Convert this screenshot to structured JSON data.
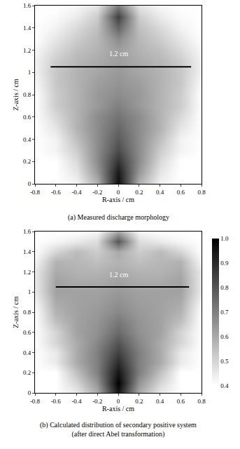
{
  "chart_data": [
    {
      "type": "heatmap",
      "caption": [
        "(a) Measured discharge morphology"
      ],
      "xlabel": "R-axis / cm",
      "ylabel": "Z-axis / cm",
      "x": [
        -0.8,
        -0.6,
        -0.4,
        -0.2,
        0,
        0.2,
        0.4,
        0.6,
        0.8
      ],
      "y": [
        0,
        0.1,
        0.2,
        0.3,
        0.4,
        0.5,
        0.6,
        0.7,
        0.8,
        0.9,
        1.0,
        1.1,
        1.2,
        1.3,
        1.4,
        1.5,
        1.6
      ],
      "cells": [
        [
          0,
          0,
          0.05,
          0.3,
          0.95,
          0.3,
          0.05,
          0,
          0
        ],
        [
          0,
          0,
          0.1,
          0.4,
          0.9,
          0.4,
          0.1,
          0,
          0
        ],
        [
          0,
          0,
          0.15,
          0.45,
          0.8,
          0.45,
          0.15,
          0,
          0
        ],
        [
          0,
          0.05,
          0.2,
          0.45,
          0.7,
          0.45,
          0.2,
          0.05,
          0
        ],
        [
          0,
          0.05,
          0.25,
          0.45,
          0.65,
          0.45,
          0.25,
          0.05,
          0
        ],
        [
          0,
          0.1,
          0.3,
          0.45,
          0.6,
          0.45,
          0.3,
          0.1,
          0
        ],
        [
          0,
          0.15,
          0.3,
          0.45,
          0.55,
          0.45,
          0.3,
          0.15,
          0
        ],
        [
          0,
          0.2,
          0.3,
          0.4,
          0.5,
          0.4,
          0.3,
          0.2,
          0
        ],
        [
          0,
          0.2,
          0.3,
          0.4,
          0.45,
          0.4,
          0.3,
          0.2,
          0
        ],
        [
          0.02,
          0.22,
          0.3,
          0.38,
          0.42,
          0.38,
          0.3,
          0.22,
          0.02
        ],
        [
          0.05,
          0.22,
          0.3,
          0.35,
          0.4,
          0.35,
          0.3,
          0.22,
          0.05
        ],
        [
          0.05,
          0.2,
          0.28,
          0.33,
          0.38,
          0.33,
          0.28,
          0.2,
          0.05
        ],
        [
          0.03,
          0.15,
          0.25,
          0.3,
          0.38,
          0.3,
          0.25,
          0.15,
          0.03
        ],
        [
          0,
          0.1,
          0.2,
          0.28,
          0.45,
          0.28,
          0.2,
          0.1,
          0
        ],
        [
          0,
          0.05,
          0.15,
          0.25,
          0.6,
          0.25,
          0.15,
          0.05,
          0
        ],
        [
          0,
          0.02,
          0.08,
          0.2,
          0.75,
          0.2,
          0.08,
          0.02,
          0
        ],
        [
          0,
          0,
          0.03,
          0.1,
          0.5,
          0.1,
          0.03,
          0,
          0
        ]
      ],
      "zlim": [
        0,
        1
      ],
      "xlim": [
        -0.8,
        0.8
      ],
      "ylim": [
        0,
        1.6
      ],
      "xticks": [
        -0.8,
        -0.6,
        -0.4,
        -0.2,
        0,
        0.2,
        0.4,
        0.6,
        0.8
      ],
      "yticks": [
        0,
        0.2,
        0.4,
        0.6,
        0.8,
        1.0,
        1.2,
        1.4,
        1.6
      ],
      "annotations": [
        {
          "text": "1.2 cm",
          "x": 0,
          "y": 1.17
        }
      ],
      "lines": [
        {
          "x": [
            -0.65,
            0.7
          ],
          "y": [
            1.05,
            1.05
          ]
        }
      ]
    },
    {
      "type": "heatmap",
      "caption": [
        "(b) Calculated distribution of secondary positive system",
        "(after direct Abel transformation)"
      ],
      "xlabel": "R-axis / cm",
      "ylabel": "Z-axis / cm",
      "x": [
        -0.8,
        -0.6,
        -0.4,
        -0.2,
        0,
        0.2,
        0.4,
        0.6,
        0.8
      ],
      "y": [
        0,
        0.1,
        0.2,
        0.3,
        0.4,
        0.5,
        0.6,
        0.7,
        0.8,
        0.9,
        1.0,
        1.1,
        1.2,
        1.3,
        1.4,
        1.5,
        1.6
      ],
      "cells": [
        [
          0.4,
          0.4,
          0.45,
          0.6,
          0.95,
          0.6,
          0.45,
          0.4,
          0.4
        ],
        [
          0.4,
          0.4,
          0.5,
          0.65,
          1.0,
          0.65,
          0.5,
          0.4,
          0.4
        ],
        [
          0.4,
          0.4,
          0.55,
          0.7,
          0.95,
          0.7,
          0.55,
          0.4,
          0.4
        ],
        [
          0.4,
          0.45,
          0.6,
          0.7,
          0.9,
          0.7,
          0.6,
          0.45,
          0.4
        ],
        [
          0.4,
          0.45,
          0.6,
          0.7,
          0.85,
          0.7,
          0.6,
          0.45,
          0.4
        ],
        [
          0.4,
          0.5,
          0.6,
          0.68,
          0.8,
          0.68,
          0.6,
          0.5,
          0.4
        ],
        [
          0.4,
          0.5,
          0.62,
          0.66,
          0.75,
          0.66,
          0.62,
          0.5,
          0.4
        ],
        [
          0.4,
          0.55,
          0.62,
          0.65,
          0.72,
          0.65,
          0.62,
          0.55,
          0.4
        ],
        [
          0.4,
          0.58,
          0.62,
          0.64,
          0.68,
          0.64,
          0.62,
          0.58,
          0.4
        ],
        [
          0.42,
          0.6,
          0.62,
          0.63,
          0.66,
          0.63,
          0.62,
          0.6,
          0.42
        ],
        [
          0.45,
          0.62,
          0.62,
          0.62,
          0.64,
          0.62,
          0.62,
          0.62,
          0.45
        ],
        [
          0.45,
          0.62,
          0.6,
          0.6,
          0.62,
          0.6,
          0.6,
          0.62,
          0.45
        ],
        [
          0.45,
          0.6,
          0.58,
          0.58,
          0.6,
          0.58,
          0.58,
          0.6,
          0.45
        ],
        [
          0.42,
          0.58,
          0.57,
          0.55,
          0.58,
          0.55,
          0.57,
          0.58,
          0.42
        ],
        [
          0.4,
          0.5,
          0.56,
          0.52,
          0.6,
          0.52,
          0.56,
          0.5,
          0.4
        ],
        [
          0.4,
          0.42,
          0.45,
          0.48,
          0.8,
          0.48,
          0.45,
          0.42,
          0.4
        ],
        [
          0.4,
          0.4,
          0.4,
          0.42,
          0.6,
          0.42,
          0.4,
          0.4,
          0.4
        ]
      ],
      "colorbar": {
        "range": [
          0.4,
          1.0
        ],
        "ticks": [
          0.4,
          0.5,
          0.6,
          0.7,
          0.8,
          0.9,
          {
            "value": 1.0,
            "label": "1.0"
          }
        ]
      },
      "xlim": [
        -0.8,
        0.8
      ],
      "ylim": [
        0,
        1.6
      ],
      "xticks": [
        -0.8,
        -0.6,
        -0.4,
        -0.2,
        0,
        0.2,
        0.4,
        0.6,
        0.8
      ],
      "yticks": [
        0,
        0.2,
        0.4,
        0.6,
        0.8,
        1.0,
        1.2,
        1.4,
        1.6
      ],
      "annotations": [
        {
          "text": "1.2 cm",
          "x": 0,
          "y": 1.17
        }
      ],
      "lines": [
        {
          "x": [
            -0.6,
            0.68
          ],
          "y": [
            1.05,
            1.05
          ]
        }
      ]
    }
  ]
}
